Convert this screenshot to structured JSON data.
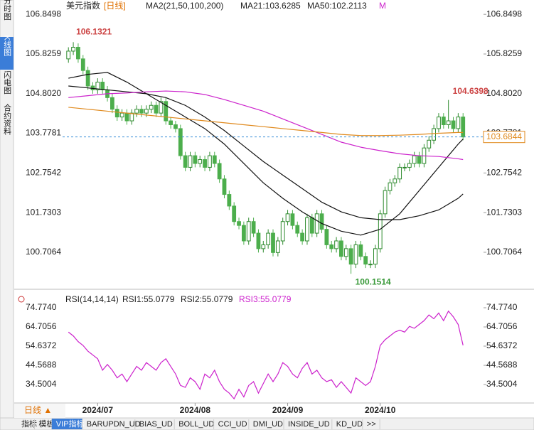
{
  "sidebar": [
    "分时图",
    "K线图",
    "闪电图",
    "合约资料"
  ],
  "header": {
    "name": "美元指数",
    "period": "[日线]",
    "ma_params": "MA2(21,50,100,200)",
    "ma21": "MA21:103.6285",
    "ma50": "MA50:102.2113",
    "ma_more": "M"
  },
  "rsi_header": {
    "params": "RSI(14,14,14)",
    "rsi1": "RSI1:55.0779",
    "rsi2": "RSI2:55.0779",
    "rsi3": "RSI3:55.0779"
  },
  "tabs": {
    "period": "日线 ▲",
    "items": [
      "指标",
      "模板",
      "VIP指标",
      "BARUPDN_UD",
      "BIAS_UD",
      "BOLL_UD",
      "CCI_UD",
      "DMI_UD",
      "INSIDE_UD",
      "KD_UD",
      ">>"
    ]
  },
  "chart_data": [
    {
      "type": "candlestick",
      "up_color": "#2e8b2e",
      "down_color": "#4cae4c",
      "xlim": [
        -1.2,
        85.2
      ],
      "ylim": [
        99.88,
        107.0
      ],
      "xticks": [
        {
          "value": 6,
          "label": "2024/07"
        },
        {
          "value": 26,
          "label": "2024/08"
        },
        {
          "value": 45,
          "label": "2024/09"
        },
        {
          "value": 64,
          "label": "2024/10"
        }
      ],
      "yticks": [
        106.8498,
        105.8259,
        {
          "value": 104.802,
          "label": "104.8020"
        },
        103.7781,
        102.7542,
        101.7303,
        100.7064
      ],
      "open": [
        105.7,
        105.9,
        106.0,
        105.7,
        105.4,
        105.0,
        104.9,
        105.1,
        104.9,
        104.7,
        104.4,
        104.2,
        104.3,
        104.1,
        104.3,
        104.4,
        104.3,
        104.4,
        104.5,
        104.3,
        104.6,
        104.1,
        104.0,
        103.9,
        103.2,
        102.9,
        103.2,
        103.0,
        103.1,
        102.9,
        103.2,
        103.0,
        102.6,
        102.2,
        101.9,
        101.5,
        101.4,
        101.0,
        101.5,
        101.2,
        100.8,
        100.9,
        101.2,
        100.7,
        101.0,
        101.5,
        101.7,
        101.4,
        101.2,
        101.0,
        101.6,
        101.2,
        101.7,
        101.3,
        100.9,
        100.8,
        101.0,
        100.6,
        100.8,
        100.4,
        100.9,
        100.6,
        100.4,
        100.4,
        100.8,
        101.7,
        102.3,
        102.5,
        102.6,
        102.9,
        102.9,
        103.0,
        103.2,
        103.0,
        103.4,
        103.6,
        103.9,
        104.2,
        104.0,
        104.1,
        103.9,
        104.2
      ],
      "high": [
        106.0,
        106.1321,
        106.1,
        105.8,
        105.5,
        105.1,
        105.2,
        105.2,
        105.0,
        104.8,
        104.5,
        104.4,
        104.4,
        104.4,
        104.5,
        104.5,
        104.5,
        104.6,
        104.6,
        104.7,
        104.7,
        104.2,
        104.1,
        104.0,
        103.3,
        103.3,
        103.3,
        103.2,
        103.2,
        103.3,
        103.3,
        103.1,
        102.7,
        102.3,
        102.0,
        101.6,
        101.5,
        101.6,
        101.6,
        101.3,
        101.0,
        101.3,
        101.3,
        101.1,
        101.6,
        101.8,
        101.8,
        101.5,
        101.3,
        101.7,
        101.7,
        101.8,
        101.8,
        101.4,
        101.0,
        101.1,
        101.1,
        100.9,
        100.9,
        101.0,
        101.0,
        100.7,
        100.5,
        100.9,
        101.8,
        102.4,
        102.6,
        102.7,
        103.0,
        103.0,
        103.1,
        103.3,
        103.3,
        103.5,
        103.7,
        104.0,
        104.3,
        104.3,
        104.6398,
        104.2,
        104.3,
        104.3
      ],
      "low": [
        105.6,
        105.8,
        105.6,
        105.3,
        104.9,
        104.8,
        104.8,
        104.8,
        104.6,
        104.3,
        104.1,
        104.1,
        104.0,
        104.0,
        104.2,
        104.2,
        104.2,
        104.3,
        104.2,
        104.2,
        104.0,
        103.9,
        103.8,
        103.1,
        102.8,
        102.8,
        102.9,
        102.9,
        102.8,
        102.8,
        102.9,
        102.5,
        102.1,
        101.8,
        101.4,
        101.3,
        100.9,
        100.9,
        101.1,
        100.7,
        100.7,
        100.8,
        100.6,
        100.6,
        100.9,
        101.4,
        101.3,
        101.1,
        100.9,
        100.9,
        101.1,
        101.1,
        101.2,
        100.8,
        100.7,
        100.7,
        100.5,
        100.5,
        100.1514,
        100.3,
        100.5,
        100.3,
        100.3,
        100.3,
        100.7,
        101.6,
        102.2,
        102.4,
        102.5,
        102.8,
        102.8,
        102.9,
        102.9,
        102.9,
        103.3,
        103.5,
        103.8,
        103.9,
        103.9,
        103.8,
        103.8,
        103.6
      ],
      "close": [
        105.9,
        106.0,
        105.7,
        105.4,
        105.0,
        104.9,
        105.1,
        104.9,
        104.7,
        104.4,
        104.2,
        104.3,
        104.1,
        104.3,
        104.4,
        104.3,
        104.4,
        104.5,
        104.3,
        104.6,
        104.1,
        104.0,
        103.9,
        103.2,
        102.9,
        103.2,
        103.0,
        103.1,
        102.9,
        103.2,
        103.0,
        102.6,
        102.2,
        101.9,
        101.5,
        101.4,
        101.0,
        101.5,
        101.2,
        100.8,
        100.9,
        101.2,
        100.7,
        101.0,
        101.5,
        101.7,
        101.4,
        101.2,
        101.0,
        101.6,
        101.2,
        101.7,
        101.3,
        100.9,
        100.8,
        101.0,
        100.6,
        100.8,
        100.4,
        100.9,
        100.6,
        100.4,
        100.4,
        100.8,
        101.7,
        102.3,
        102.5,
        102.6,
        102.9,
        102.9,
        103.0,
        103.2,
        103.0,
        103.4,
        103.6,
        103.9,
        104.2,
        104.0,
        104.1,
        103.9,
        104.2,
        103.6844
      ],
      "high_label": 1,
      "low_label": 58,
      "peak_label": 78,
      "lines": [
        {
          "color": "#111111",
          "x": [
            0,
            4,
            8,
            12,
            16,
            20,
            24,
            28,
            32,
            36,
            40,
            44,
            48,
            52,
            56,
            60,
            64,
            68,
            72,
            76,
            80,
            81
          ],
          "values": [
            105.2,
            105.3,
            105.35,
            105.1,
            104.8,
            104.5,
            104.2,
            103.9,
            103.5,
            103.0,
            102.5,
            102.1,
            101.75,
            101.45,
            101.25,
            101.15,
            101.3,
            101.7,
            102.3,
            102.9,
            103.5,
            103.6285
          ]
        },
        {
          "color": "#111111",
          "x": [
            0,
            4,
            8,
            12,
            16,
            20,
            24,
            28,
            32,
            36,
            40,
            44,
            48,
            52,
            56,
            60,
            64,
            68,
            72,
            76,
            80,
            81
          ],
          "values": [
            105.0,
            104.95,
            104.9,
            104.85,
            104.8,
            104.7,
            104.5,
            104.2,
            103.85,
            103.45,
            103.05,
            102.7,
            102.35,
            102.0,
            101.75,
            101.6,
            101.55,
            101.55,
            101.65,
            101.8,
            102.1,
            102.2113
          ]
        },
        {
          "color": "#cc22cc",
          "x": [
            0,
            4,
            8,
            12,
            16,
            20,
            24,
            28,
            32,
            36,
            40,
            44,
            48,
            52,
            56,
            60,
            64,
            68,
            72,
            76,
            80,
            81
          ],
          "values": [
            104.7,
            104.75,
            104.8,
            104.82,
            104.85,
            104.87,
            104.85,
            104.78,
            104.65,
            104.5,
            104.35,
            104.15,
            103.95,
            103.75,
            103.55,
            103.42,
            103.33,
            103.25,
            103.2,
            103.18,
            103.12,
            103.1
          ]
        },
        {
          "color": "#e08a1e",
          "x": [
            0,
            4,
            8,
            12,
            16,
            20,
            24,
            28,
            32,
            36,
            40,
            44,
            48,
            52,
            56,
            60,
            64,
            68,
            72,
            76,
            80,
            81
          ],
          "values": [
            104.45,
            104.4,
            104.35,
            104.3,
            104.25,
            104.2,
            104.15,
            104.1,
            104.05,
            104.0,
            103.95,
            103.9,
            103.85,
            103.8,
            103.75,
            103.72,
            103.72,
            103.73,
            103.75,
            103.78,
            103.8,
            103.8
          ]
        }
      ]
    },
    {
      "type": "line",
      "color": "#cc22cc",
      "xlim": [
        -1.2,
        85.2
      ],
      "ylim": [
        24.8,
        82.6
      ],
      "yticks": [
        {
          "value": 74.774,
          "label": "74.7740"
        },
        64.7056,
        54.6372,
        44.5688,
        34.5004
      ],
      "values": [
        62,
        60,
        57,
        55,
        52,
        50,
        48,
        42,
        45,
        42,
        38,
        40,
        36,
        40,
        44,
        42,
        46,
        44,
        42,
        46,
        48,
        44,
        40,
        34,
        33,
        38,
        36,
        32,
        40,
        38,
        42,
        36,
        32,
        30,
        27,
        32,
        28,
        34,
        36,
        30,
        35,
        40,
        36,
        40,
        46,
        44,
        40,
        38,
        43,
        46,
        40,
        42,
        38,
        36,
        37,
        33,
        36,
        33,
        30,
        38,
        36,
        34,
        36,
        44,
        55,
        58,
        60,
        62,
        63,
        62,
        65,
        64,
        66,
        68,
        71,
        69,
        72,
        68,
        73,
        70,
        66,
        55.0779
      ]
    }
  ]
}
